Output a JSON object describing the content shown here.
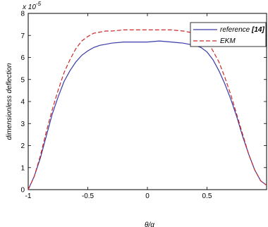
{
  "chart_data": {
    "type": "line",
    "xlabel": "θ/α",
    "ylabel": "dimensionless deflection",
    "xlim": [
      -1,
      1
    ],
    "ylim": [
      0,
      8
    ],
    "y_multiplier": "x 10",
    "y_multiplier_exp": "-5",
    "x_ticks": [
      -1,
      -0.5,
      0,
      0.5
    ],
    "x_tick_labels": [
      "-1",
      "-0.5",
      "0",
      "0.5"
    ],
    "y_ticks": [
      0,
      1,
      2,
      3,
      4,
      5,
      6,
      7,
      8
    ],
    "y_tick_labels": [
      "0",
      "1",
      "2",
      "3",
      "4",
      "5",
      "6",
      "7",
      "8"
    ],
    "grid": false,
    "legend_position": "top-right",
    "series": [
      {
        "name": "reference",
        "name_cite": "[14]",
        "color": "#3a3aa8",
        "dash": "solid",
        "x": [
          -1,
          -0.95,
          -0.9,
          -0.85,
          -0.8,
          -0.75,
          -0.7,
          -0.65,
          -0.6,
          -0.55,
          -0.5,
          -0.45,
          -0.4,
          -0.35,
          -0.3,
          -0.2,
          -0.1,
          0,
          0.1,
          0.2,
          0.3,
          0.35,
          0.4,
          0.45,
          0.5,
          0.55,
          0.6,
          0.65,
          0.7,
          0.75,
          0.8,
          0.85,
          0.9,
          0.95,
          1
        ],
        "y": [
          0,
          0.6,
          1.4,
          2.4,
          3.4,
          4.2,
          4.9,
          5.4,
          5.8,
          6.1,
          6.3,
          6.45,
          6.55,
          6.6,
          6.65,
          6.7,
          6.7,
          6.7,
          6.75,
          6.7,
          6.65,
          6.6,
          6.55,
          6.45,
          6.25,
          5.9,
          5.4,
          4.8,
          4.1,
          3.3,
          2.4,
          1.6,
          0.9,
          0.4,
          0.2
        ]
      },
      {
        "name": "EKM",
        "color": "#cc2a2a",
        "dash": "dashed",
        "x": [
          -1,
          -0.95,
          -0.9,
          -0.85,
          -0.8,
          -0.75,
          -0.7,
          -0.65,
          -0.6,
          -0.55,
          -0.5,
          -0.45,
          -0.4,
          -0.35,
          -0.3,
          -0.2,
          -0.1,
          0,
          0.1,
          0.2,
          0.3,
          0.35,
          0.4,
          0.45,
          0.5,
          0.55,
          0.6,
          0.65,
          0.7,
          0.75,
          0.8,
          0.85,
          0.9,
          0.95,
          1
        ],
        "y": [
          0,
          0.6,
          1.5,
          2.6,
          3.6,
          4.5,
          5.3,
          5.9,
          6.4,
          6.75,
          6.95,
          7.1,
          7.15,
          7.2,
          7.2,
          7.25,
          7.25,
          7.25,
          7.25,
          7.25,
          7.2,
          7.15,
          7.1,
          7.0,
          6.75,
          6.3,
          5.8,
          5.1,
          4.3,
          3.4,
          2.5,
          1.6,
          0.9,
          0.4,
          0.2
        ]
      }
    ]
  }
}
